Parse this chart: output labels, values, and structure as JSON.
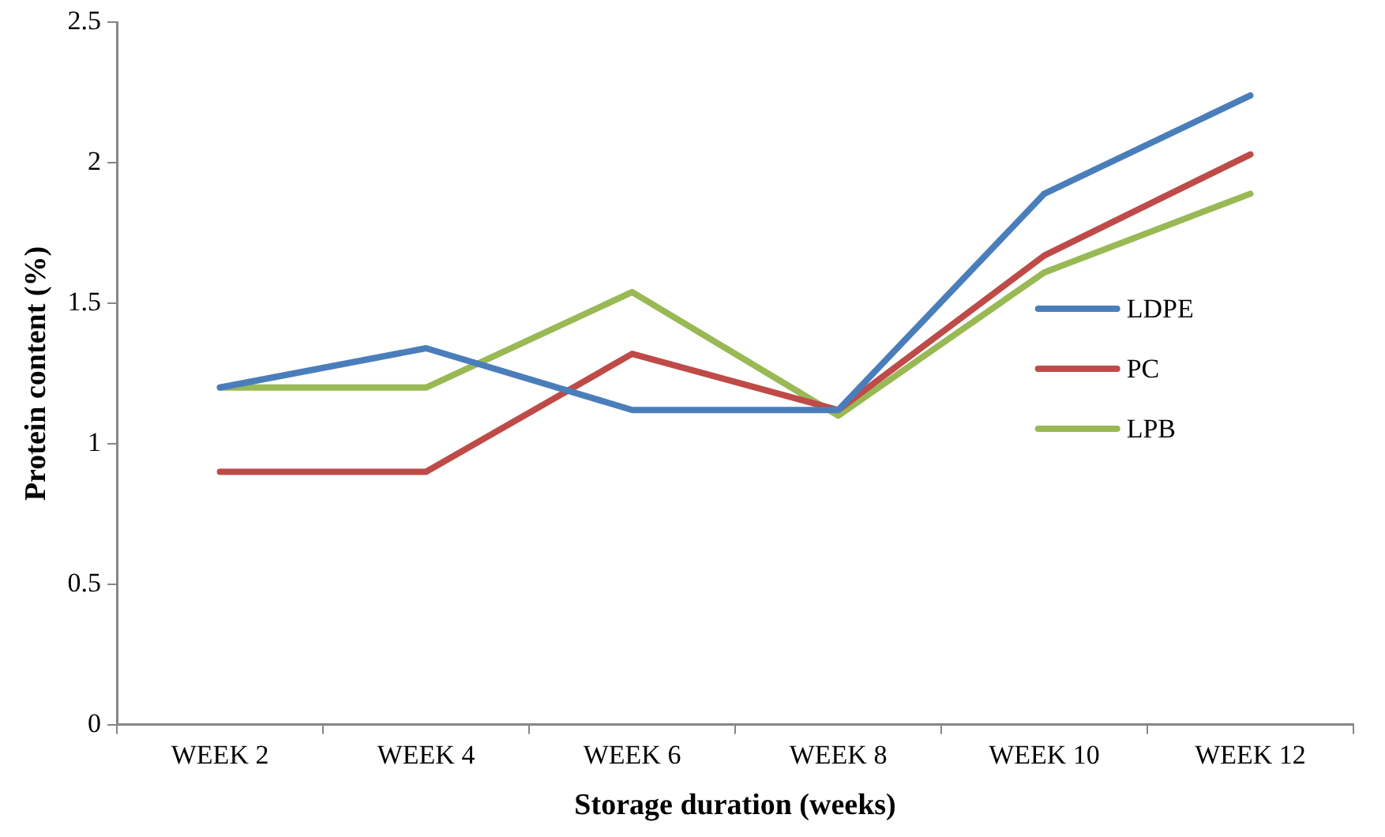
{
  "chart_data": {
    "type": "line",
    "xlabel": "Storage duration (weeks)",
    "ylabel": "Protein content (%)",
    "categories": [
      "WEEK 2",
      "WEEK 4",
      "WEEK 6",
      "WEEK 8",
      "WEEK 10",
      "WEEK 12"
    ],
    "series": [
      {
        "name": "LDPE",
        "color": "#4a7ebb",
        "values": [
          1.2,
          1.34,
          1.12,
          1.12,
          1.89,
          2.24
        ]
      },
      {
        "name": "PC",
        "color": "#be4b48",
        "values": [
          0.9,
          0.9,
          1.32,
          1.12,
          1.67,
          2.03
        ]
      },
      {
        "name": "LPB",
        "color": "#98b954",
        "values": [
          1.2,
          1.2,
          1.54,
          1.1,
          1.61,
          1.89
        ]
      }
    ],
    "ylim": [
      0,
      2.5
    ],
    "yticks": [
      0,
      0.5,
      1,
      1.5,
      2,
      2.5
    ],
    "grid": false,
    "legend": "right",
    "marker": "none",
    "line_style": "solid"
  }
}
